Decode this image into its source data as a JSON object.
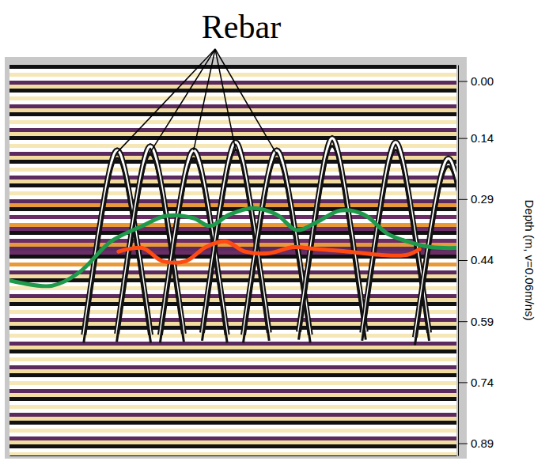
{
  "chart_data": {
    "type": "line",
    "title": "Rebar",
    "y_label": "Depth (m, v=0.06m/ns)",
    "tick_labels": "y",
    "xlim": [
      0,
      100
    ],
    "xticks": [],
    "ylim": [
      -0.04,
      0.92
    ],
    "yticks": [
      {
        "value": 0,
        "label": "0.00"
      },
      0.14,
      0.29,
      0.44,
      0.59,
      0.74,
      0.89
    ],
    "series": [
      {
        "color": "#1f9a4c",
        "x": [
          0,
          9.4,
          15.6,
          22.7,
          29.7,
          35.0,
          41.2,
          44.8,
          49.2,
          54.5,
          59.8,
          64.2,
          68.7,
          74.0,
          79.3,
          84.6,
          89.0,
          94.3,
          100
        ],
        "values": [
          0.49,
          0.503,
          0.47,
          0.394,
          0.356,
          0.331,
          0.337,
          0.356,
          0.328,
          0.312,
          0.328,
          0.366,
          0.347,
          0.318,
          0.328,
          0.375,
          0.394,
          0.408,
          0.41
        ]
      },
      {
        "color": "#ff4a14",
        "x": [
          24.4,
          29.7,
          34.2,
          39.5,
          43.9,
          48.3,
          52.7,
          58.1,
          63.4,
          68.7,
          75.8,
          82.8,
          89.0,
          91.7
        ],
        "values": [
          0.419,
          0.41,
          0.442,
          0.442,
          0.408,
          0.394,
          0.419,
          0.423,
          0.408,
          0.413,
          0.419,
          0.427,
          0.427,
          0.413
        ]
      }
    ],
    "reflectors": {
      "x": [
        24.1,
        31.5,
        41.2,
        50.6,
        59.8,
        72.2,
        86.4,
        98.2
      ],
      "y": [
        0.17,
        0.16,
        0.17,
        0.15,
        0.17,
        0.14,
        0.15,
        0.19
      ]
    },
    "annotations": [
      {
        "text": "Rebar",
        "x": [
          24.1,
          31.5,
          41.2,
          50.6,
          59.8
        ],
        "y": [
          0.175,
          0.175,
          0.17,
          0.17,
          0.18
        ]
      }
    ]
  }
}
